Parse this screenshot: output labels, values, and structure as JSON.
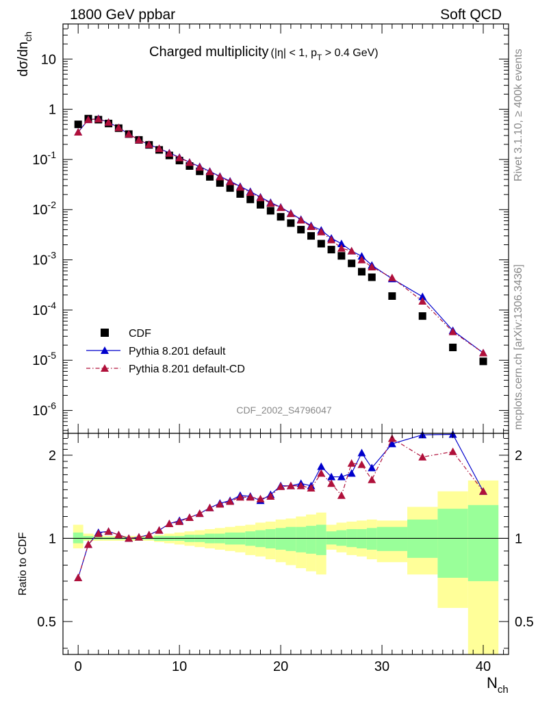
{
  "header": {
    "left": "1800 GeV ppbar",
    "right": "Soft QCD"
  },
  "side": {
    "rivet": "Rivet 3.1.10, ≥ 400k events",
    "mcplots": "mcplots.cern.ch [arXiv:1306.3436]"
  },
  "main": {
    "title_main": "Charged multiplicity",
    "title_sub_a": "(|η| < 1, p",
    "title_sub_b": "T",
    "title_sub_c": " > 0.4 GeV)",
    "ylabel_a": "dσ/dn",
    "ylabel_b": "ch",
    "analysis_id": "CDF_2002_S4796047"
  },
  "ratio": {
    "ylabel": "Ratio to CDF"
  },
  "xaxis": {
    "label_a": "N",
    "label_b": "ch",
    "ticks": [
      "0",
      "10",
      "20",
      "30",
      "40"
    ]
  },
  "legend": {
    "cdf": "CDF",
    "pythia_default": "Pythia 8.201 default",
    "pythia_cd": "Pythia 8.201 default-CD"
  },
  "colors": {
    "data": "#000000",
    "default": "#0000cc",
    "cd": "#b0103a",
    "band_inner": "#99ff99",
    "band_outer": "#ffff99"
  },
  "chart_data": [
    {
      "type": "scatter",
      "panel": "main",
      "yscale": "log",
      "xlim": [
        -1.5,
        42.5
      ],
      "ylim": [
        3.5e-07,
        50
      ],
      "yticks": [
        "10^-6",
        "10^-5",
        "10^-4",
        "10^-3",
        "10^-2",
        "10^-1",
        "1",
        "10"
      ],
      "x": [
        0,
        1,
        2,
        3,
        4,
        5,
        6,
        7,
        8,
        9,
        10,
        11,
        12,
        13,
        14,
        15,
        16,
        17,
        18,
        19,
        20,
        21,
        22,
        23,
        24,
        25,
        26,
        27,
        28,
        29,
        31,
        34,
        37,
        40
      ],
      "series": [
        {
          "name": "CDF",
          "marker": "square",
          "values": [
            0.5,
            0.65,
            0.62,
            0.52,
            0.42,
            0.32,
            0.245,
            0.195,
            0.155,
            0.12,
            0.095,
            0.074,
            0.058,
            0.045,
            0.034,
            0.027,
            0.0205,
            0.016,
            0.0125,
            0.0095,
            0.0072,
            0.0054,
            0.004,
            0.003,
            0.0021,
            0.0016,
            0.0012,
            0.00085,
            0.00058,
            0.00045,
            0.00019,
            7.6e-05,
            1.8e-05,
            9.5e-06
          ]
        },
        {
          "name": "Pythia 8.201 default",
          "marker": "triangle",
          "line": "solid",
          "values": [
            0.35,
            0.62,
            0.65,
            0.55,
            0.43,
            0.32,
            0.245,
            0.198,
            0.165,
            0.135,
            0.11,
            0.088,
            0.072,
            0.058,
            0.046,
            0.037,
            0.029,
            0.023,
            0.0178,
            0.0139,
            0.0112,
            0.0085,
            0.0064,
            0.0048,
            0.0039,
            0.0027,
            0.0021,
            0.0015,
            0.00118,
            0.00078,
            0.00042,
            0.000185,
            3.9e-05,
            1.4e-05
          ]
        },
        {
          "name": "Pythia 8.201 default-CD",
          "marker": "triangle",
          "line": "dashdot",
          "values": [
            0.35,
            0.62,
            0.64,
            0.55,
            0.43,
            0.32,
            0.245,
            0.198,
            0.165,
            0.133,
            0.108,
            0.087,
            0.07,
            0.057,
            0.045,
            0.036,
            0.028,
            0.022,
            0.0173,
            0.0134,
            0.011,
            0.0083,
            0.0062,
            0.0046,
            0.0036,
            0.0025,
            0.0017,
            0.0015,
            0.001,
            0.00072,
            0.00044,
            0.00015,
            3.7e-05,
            1.4e-05
          ]
        }
      ]
    },
    {
      "type": "scatter",
      "panel": "ratio",
      "yscale": "log",
      "ylim": [
        0.38,
        2.4
      ],
      "yticks": [
        "0.5",
        "1",
        "2"
      ],
      "x": [
        0,
        1,
        2,
        3,
        4,
        5,
        6,
        7,
        8,
        9,
        10,
        11,
        12,
        13,
        14,
        15,
        16,
        17,
        18,
        19,
        20,
        21,
        22,
        23,
        24,
        25,
        26,
        27,
        28,
        29,
        31,
        34,
        37,
        40
      ],
      "series": [
        {
          "name": "Pythia 8.201 default",
          "values": [
            0.72,
            0.95,
            1.05,
            1.06,
            1.03,
            1.0,
            1.01,
            1.03,
            1.07,
            1.13,
            1.16,
            1.19,
            1.23,
            1.29,
            1.34,
            1.37,
            1.43,
            1.42,
            1.37,
            1.44,
            1.55,
            1.55,
            1.58,
            1.55,
            1.82,
            1.67,
            1.67,
            1.72,
            2.04,
            1.8,
            2.2,
            2.37,
            2.38,
            1.48
          ]
        },
        {
          "name": "Pythia 8.201 default-CD",
          "values": [
            0.72,
            0.95,
            1.04,
            1.06,
            1.03,
            1.0,
            1.01,
            1.03,
            1.07,
            1.13,
            1.15,
            1.19,
            1.23,
            1.29,
            1.33,
            1.36,
            1.41,
            1.41,
            1.39,
            1.42,
            1.54,
            1.55,
            1.55,
            1.52,
            1.72,
            1.58,
            1.43,
            1.87,
            1.85,
            1.63,
            2.3,
            1.97,
            2.06,
            1.48
          ]
        }
      ],
      "bands": {
        "edges": [
          -0.5,
          0.5,
          1.5,
          2.5,
          3.5,
          4.5,
          5.5,
          6.5,
          7.5,
          8.5,
          9.5,
          10.5,
          11.5,
          12.5,
          13.5,
          14.5,
          15.5,
          16.5,
          17.5,
          18.5,
          19.5,
          20.5,
          21.5,
          22.5,
          23.5,
          24.5,
          25.5,
          26.5,
          27.5,
          28.5,
          29.5,
          32.5,
          35.5,
          38.5,
          41.5
        ],
        "inner_lo": [
          0.96,
          0.99,
          0.99,
          0.99,
          0.99,
          0.99,
          0.99,
          0.99,
          0.98,
          0.98,
          0.98,
          0.97,
          0.97,
          0.96,
          0.96,
          0.95,
          0.95,
          0.94,
          0.93,
          0.92,
          0.91,
          0.9,
          0.89,
          0.88,
          0.87,
          0.95,
          0.94,
          0.93,
          0.92,
          0.91,
          0.9,
          0.85,
          0.72,
          0.7
        ],
        "inner_hi": [
          1.05,
          1.02,
          1.01,
          1.01,
          1.01,
          1.01,
          1.01,
          1.01,
          1.02,
          1.02,
          1.02,
          1.03,
          1.03,
          1.04,
          1.04,
          1.05,
          1.05,
          1.06,
          1.07,
          1.08,
          1.09,
          1.1,
          1.1,
          1.11,
          1.12,
          1.06,
          1.07,
          1.08,
          1.08,
          1.09,
          1.1,
          1.17,
          1.28,
          1.32
        ],
        "outer_lo": [
          0.92,
          0.98,
          0.98,
          0.98,
          0.98,
          0.98,
          0.98,
          0.98,
          0.97,
          0.96,
          0.95,
          0.94,
          0.93,
          0.92,
          0.91,
          0.9,
          0.89,
          0.87,
          0.86,
          0.84,
          0.82,
          0.8,
          0.78,
          0.76,
          0.74,
          0.91,
          0.89,
          0.87,
          0.86,
          0.84,
          0.82,
          0.74,
          0.56,
          0.36
        ],
        "outer_hi": [
          1.12,
          1.04,
          1.03,
          1.02,
          1.02,
          1.02,
          1.02,
          1.02,
          1.03,
          1.04,
          1.05,
          1.06,
          1.07,
          1.08,
          1.09,
          1.1,
          1.11,
          1.12,
          1.14,
          1.15,
          1.17,
          1.18,
          1.2,
          1.22,
          1.24,
          1.12,
          1.14,
          1.15,
          1.16,
          1.17,
          1.16,
          1.3,
          1.48,
          1.62
        ]
      }
    }
  ]
}
